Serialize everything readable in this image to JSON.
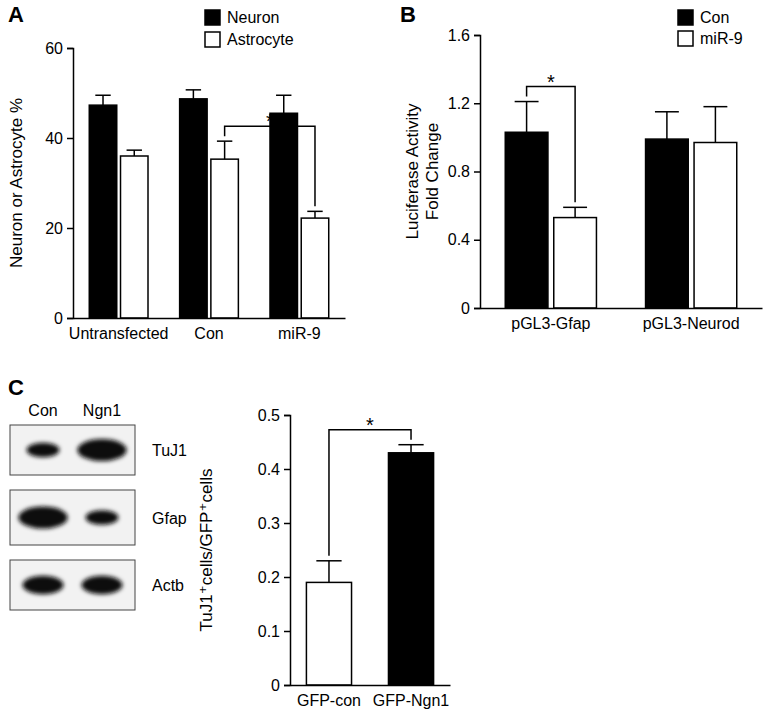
{
  "chart_data": [
    {
      "type": "bar",
      "panel": "A",
      "y_label": [
        "Neuron or Astrocyte %"
      ],
      "categories": [
        "Untransfected",
        "Con",
        "miR-9"
      ],
      "series": [
        {
          "name": "Neuron",
          "color": "#000000",
          "values": [
            47.3,
            48.7,
            45.5
          ],
          "errors": [
            2.2,
            2.0,
            4.0
          ]
        },
        {
          "name": "Astrocyte",
          "color": "#ffffff",
          "values": [
            36.0,
            35.3,
            22.2
          ],
          "errors": [
            1.3,
            4.0,
            1.5
          ]
        }
      ],
      "ylim": [
        0,
        60
      ],
      "yticks": [
        0,
        20,
        40,
        60
      ],
      "legend": "top",
      "annotations": [
        {
          "text": "*",
          "from": {
            "category": "Con",
            "series": "Astrocyte"
          },
          "to": {
            "category": "miR-9",
            "series": "Astrocyte"
          }
        }
      ]
    },
    {
      "type": "bar",
      "panel": "B",
      "y_label": [
        "Luciferase Activity",
        "Fold Change"
      ],
      "categories": [
        "pGL3-Gfap",
        "pGL3-Neurod"
      ],
      "series": [
        {
          "name": "Con",
          "color": "#000000",
          "values": [
            1.03,
            0.99
          ],
          "errors": [
            0.18,
            0.16
          ]
        },
        {
          "name": "miR-9",
          "color": "#ffffff",
          "values": [
            0.53,
            0.97
          ],
          "errors": [
            0.06,
            0.21
          ]
        }
      ],
      "ylim": [
        0,
        1.6
      ],
      "yticks": [
        0,
        0.4,
        0.8,
        1.2,
        1.6
      ],
      "legend": "top right",
      "annotations": [
        {
          "text": "*",
          "from": {
            "category": "pGL3-Gfap",
            "series": "Con"
          },
          "to": {
            "category": "pGL3-Gfap",
            "series": "miR-9"
          }
        }
      ]
    },
    {
      "type": "blot",
      "panel": "C",
      "lanes": [
        "Con",
        "Ngn1"
      ],
      "rows": [
        {
          "name": "TuJ1",
          "band_intensity": [
            0.8,
            1.2
          ]
        },
        {
          "name": "Gfap",
          "band_intensity": [
            1.2,
            0.8
          ]
        },
        {
          "name": "Actb",
          "band_intensity": [
            1.0,
            1.0
          ]
        }
      ]
    },
    {
      "type": "bar",
      "y_label": [
        "TuJ1⁺cells/GFP⁺cells"
      ],
      "categories": [
        "GFP-con",
        "GFP-Ngn1"
      ],
      "values": [
        0.19,
        0.43
      ],
      "errors": [
        0.04,
        0.015
      ],
      "colors": [
        "#ffffff",
        "#000000"
      ],
      "ylim": [
        0,
        0.5
      ],
      "yticks": [
        0,
        0.1,
        0.2,
        0.3,
        0.4,
        0.5
      ],
      "annotations": [
        {
          "text": "*",
          "from": {
            "category": "GFP-con"
          },
          "to": {
            "category": "GFP-Ngn1"
          }
        }
      ]
    }
  ]
}
